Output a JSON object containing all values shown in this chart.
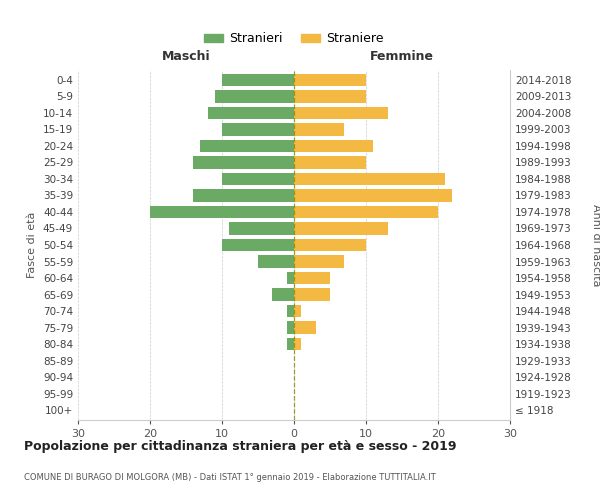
{
  "age_groups": [
    "100+",
    "95-99",
    "90-94",
    "85-89",
    "80-84",
    "75-79",
    "70-74",
    "65-69",
    "60-64",
    "55-59",
    "50-54",
    "45-49",
    "40-44",
    "35-39",
    "30-34",
    "25-29",
    "20-24",
    "15-19",
    "10-14",
    "5-9",
    "0-4"
  ],
  "birth_years": [
    "≤ 1918",
    "1919-1923",
    "1924-1928",
    "1929-1933",
    "1934-1938",
    "1939-1943",
    "1944-1948",
    "1949-1953",
    "1954-1958",
    "1959-1963",
    "1964-1968",
    "1969-1973",
    "1974-1978",
    "1979-1983",
    "1984-1988",
    "1989-1993",
    "1994-1998",
    "1999-2003",
    "2004-2008",
    "2009-2013",
    "2014-2018"
  ],
  "males": [
    0,
    0,
    0,
    0,
    1,
    1,
    1,
    3,
    1,
    5,
    10,
    9,
    20,
    14,
    10,
    14,
    13,
    10,
    12,
    11,
    10
  ],
  "females": [
    0,
    0,
    0,
    0,
    1,
    3,
    1,
    5,
    5,
    7,
    10,
    13,
    20,
    22,
    21,
    10,
    11,
    7,
    13,
    10,
    10
  ],
  "male_color": "#6aaa64",
  "female_color": "#f4b942",
  "center_line_color": "#888800",
  "grid_color": "#cccccc",
  "bg_color": "#ffffff",
  "title": "Popolazione per cittadinanza straniera per età e sesso - 2019",
  "subtitle": "COMUNE DI BURAGO DI MOLGORA (MB) - Dati ISTAT 1° gennaio 2019 - Elaborazione TUTTITALIA.IT",
  "xlabel_left": "Maschi",
  "xlabel_right": "Femmine",
  "ylabel_left": "Fasce di età",
  "ylabel_right": "Anni di nascita",
  "legend_male": "Stranieri",
  "legend_female": "Straniere",
  "xlim": 30
}
